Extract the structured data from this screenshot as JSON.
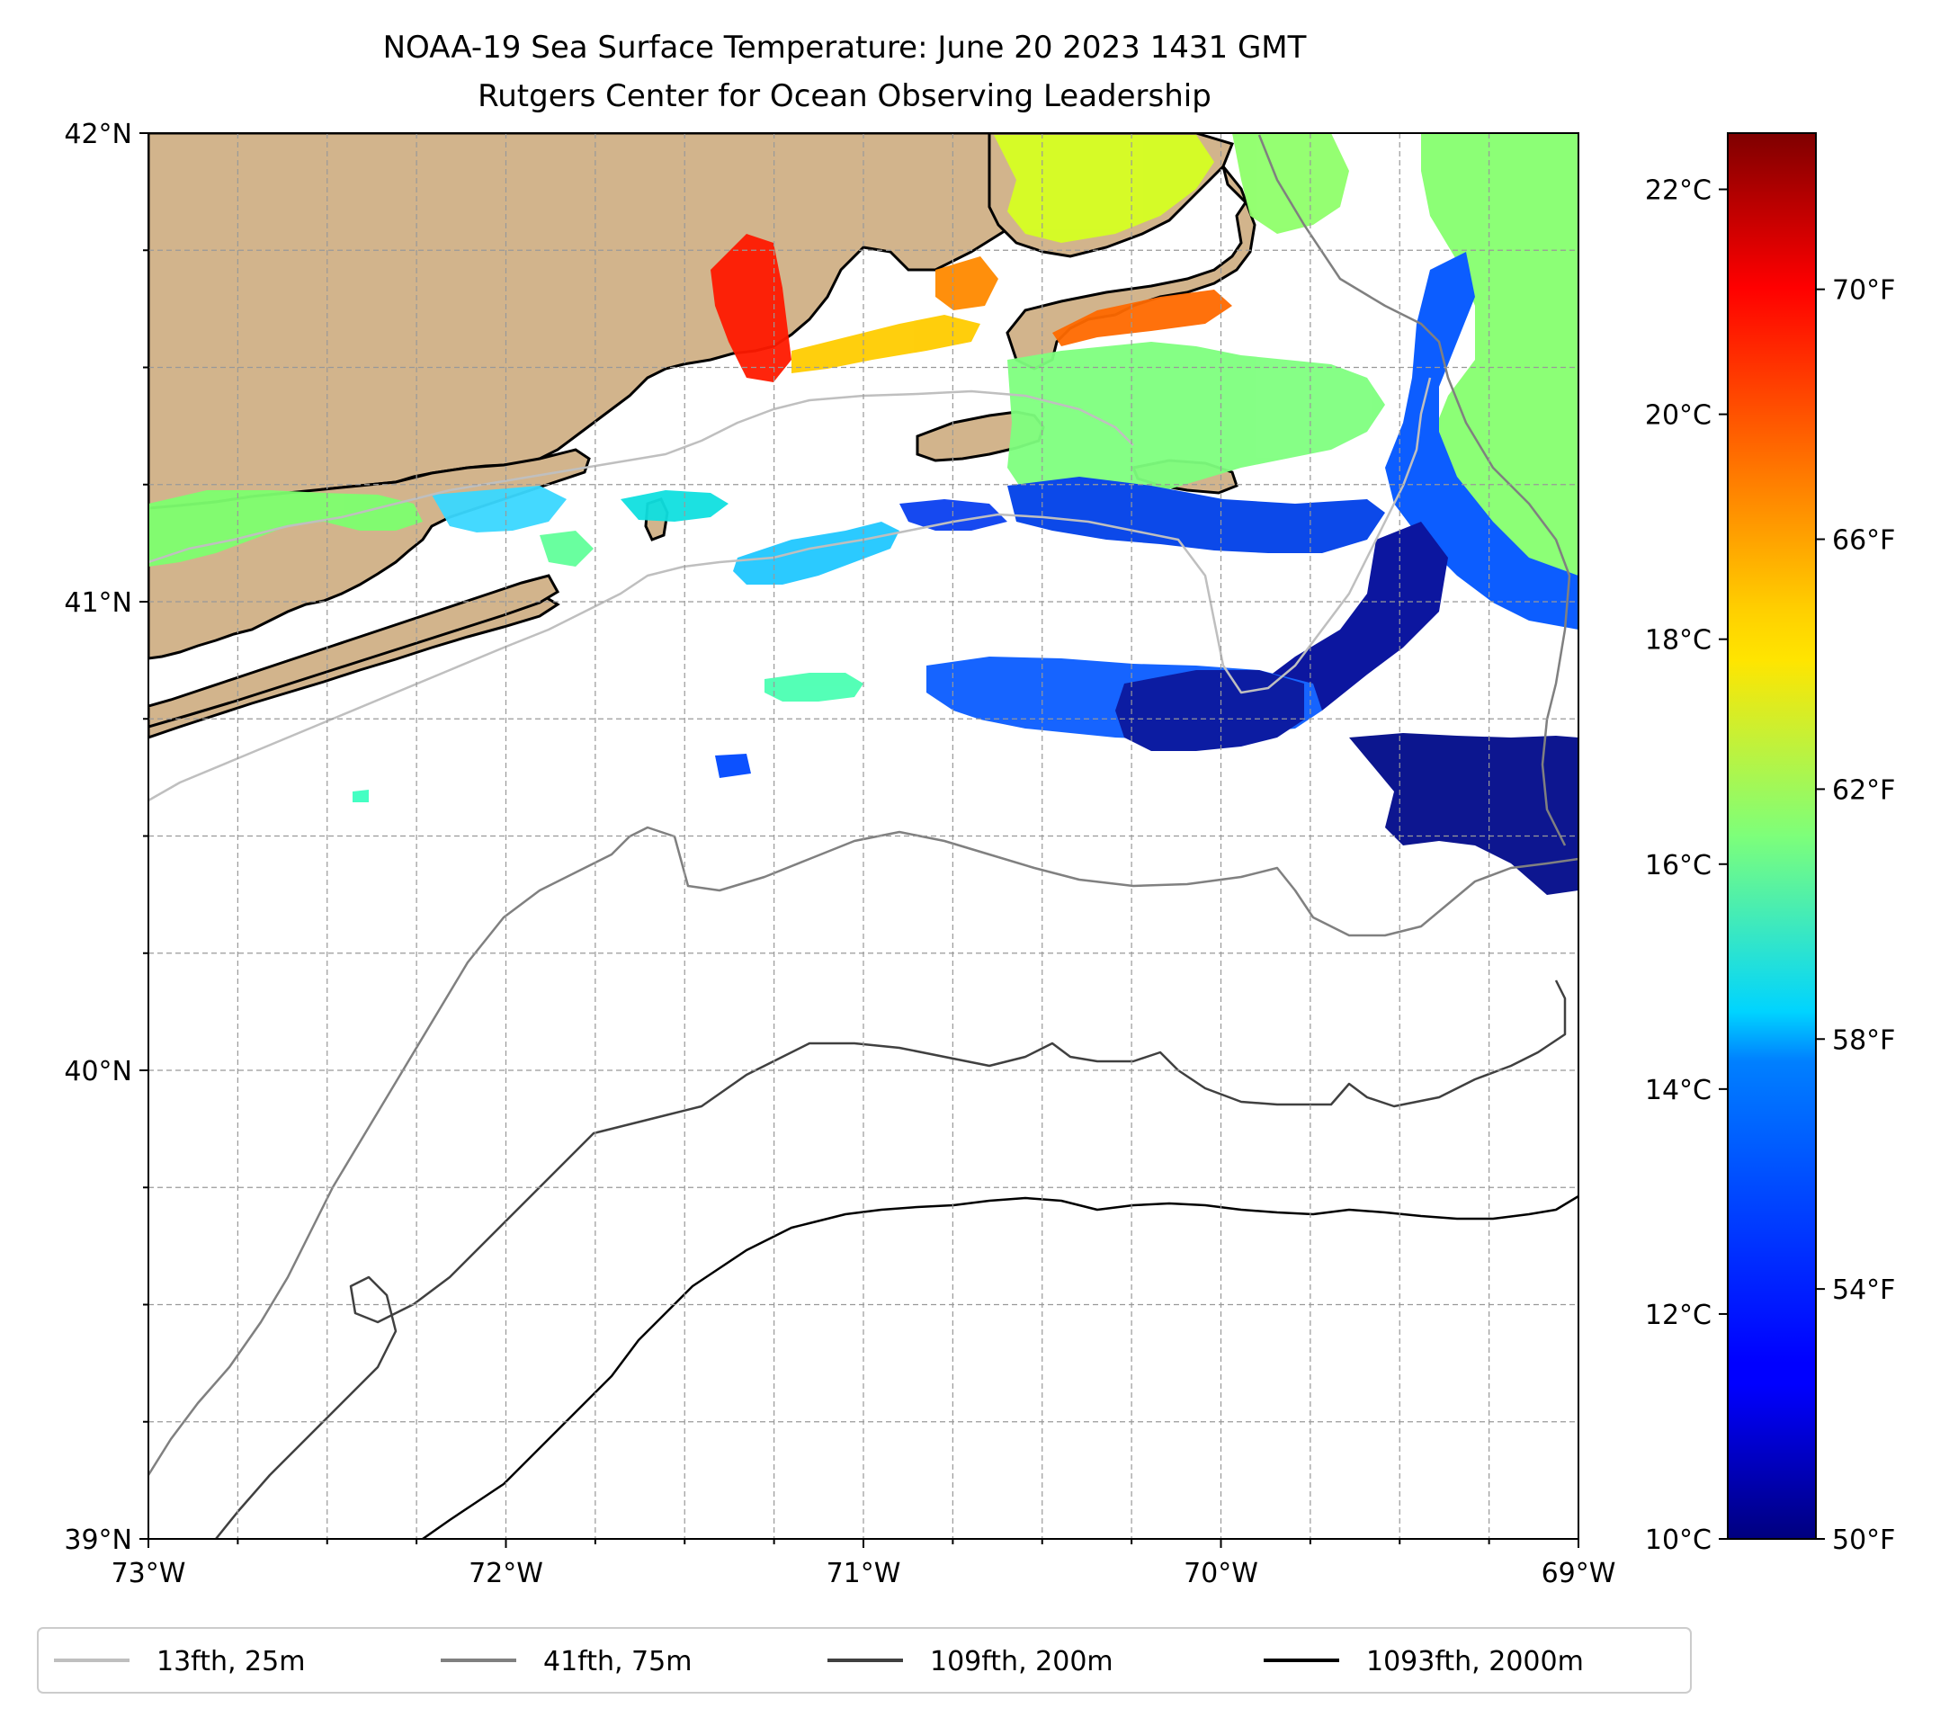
{
  "title": {
    "line1": "NOAA-19 Sea Surface Temperature: June 20 2023 1431 GMT",
    "line2": "Rutgers Center for Ocean Observing Leadership"
  },
  "map": {
    "lon_range": [
      -73,
      -69
    ],
    "lat_range": [
      39,
      42
    ],
    "lon_ticks": [
      {
        "value": -73,
        "label": "73°W"
      },
      {
        "value": -72,
        "label": "72°W"
      },
      {
        "value": -71,
        "label": "71°W"
      },
      {
        "value": -70,
        "label": "70°W"
      },
      {
        "value": -69,
        "label": "69°W"
      }
    ],
    "lat_ticks": [
      {
        "value": 42,
        "label": "42°N"
      },
      {
        "value": 41,
        "label": "41°N"
      },
      {
        "value": 40,
        "label": "40°N"
      },
      {
        "value": 39,
        "label": "39°N"
      }
    ],
    "grid_step_deg": 0.25,
    "land_color": "#d2b48c",
    "ocean_color": "#ffffff"
  },
  "colorbar": {
    "celsius_ticks": [
      {
        "value": 10,
        "label": "10°C"
      },
      {
        "value": 12,
        "label": "12°C"
      },
      {
        "value": 14,
        "label": "14°C"
      },
      {
        "value": 16,
        "label": "16°C"
      },
      {
        "value": 18,
        "label": "18°C"
      },
      {
        "value": 20,
        "label": "20°C"
      },
      {
        "value": 22,
        "label": "22°C"
      }
    ],
    "fahrenheit_ticks": [
      {
        "value": 50,
        "label": "50°F"
      },
      {
        "value": 54,
        "label": "54°F"
      },
      {
        "value": 58,
        "label": "58°F"
      },
      {
        "value": 62,
        "label": "62°F"
      },
      {
        "value": 66,
        "label": "66°F"
      },
      {
        "value": 70,
        "label": "70°F"
      }
    ],
    "range_f": [
      50,
      72.5
    ],
    "colormap": "jet"
  },
  "legend": [
    {
      "label": "13fth, 25m",
      "color": "#bfbfbf"
    },
    {
      "label": "41fth, 75m",
      "color": "#808080"
    },
    {
      "label": "109fth, 200m",
      "color": "#404040"
    },
    {
      "label": "1093fth, 2000m",
      "color": "#000000"
    }
  ]
}
